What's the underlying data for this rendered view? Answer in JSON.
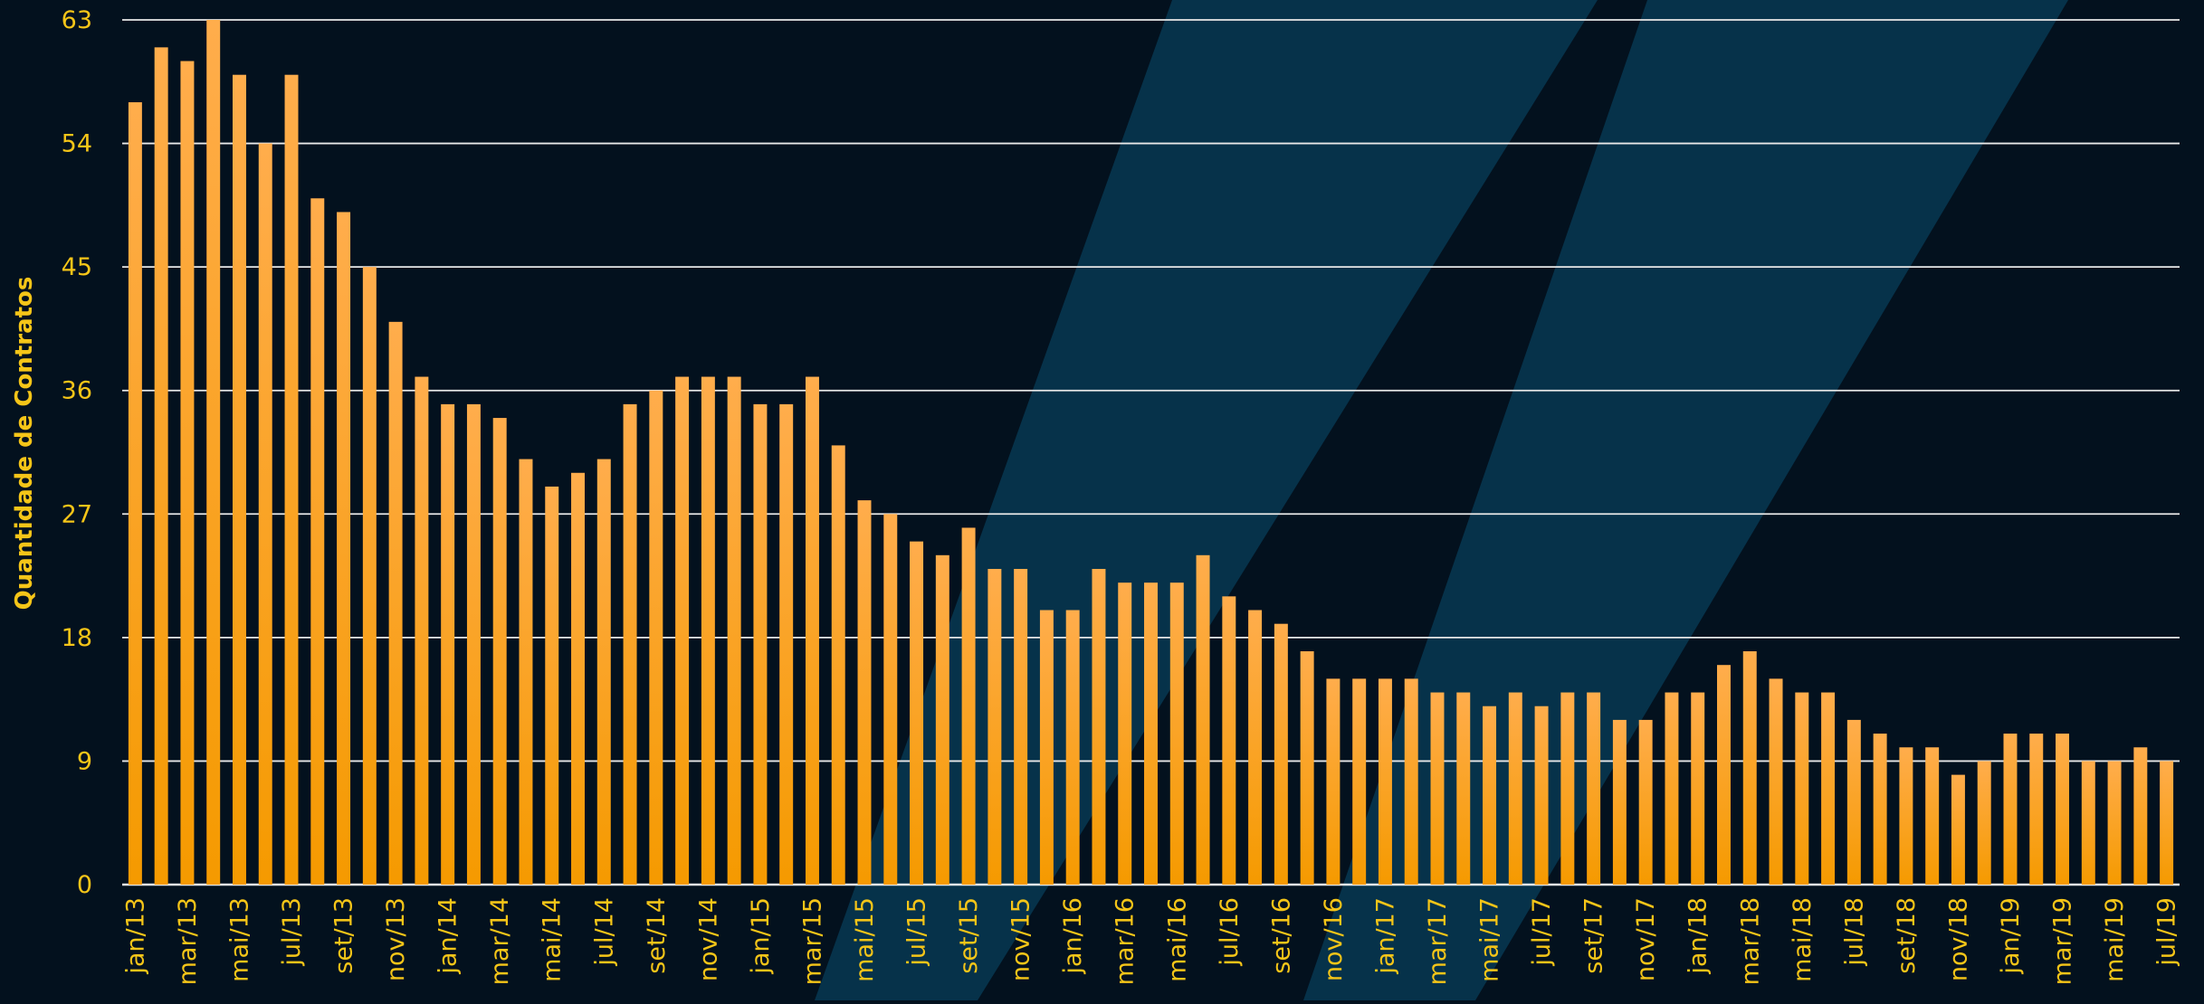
{
  "chart_data": {
    "type": "bar",
    "ylabel": "Quantidade de Contratos",
    "xlabel": "",
    "ylim": [
      0,
      63
    ],
    "yticks": [
      0,
      9,
      18,
      27,
      36,
      45,
      54,
      63
    ],
    "grid": true,
    "categories": [
      "jan/13",
      "fev/13",
      "mar/13",
      "abr/13",
      "mai/13",
      "jun/13",
      "jul/13",
      "ago/13",
      "set/13",
      "out/13",
      "nov/13",
      "dez/13",
      "jan/14",
      "fev/14",
      "mar/14",
      "abr/14",
      "mai/14",
      "jun/14",
      "jul/14",
      "ago/14",
      "set/14",
      "out/14",
      "nov/14",
      "dez/14",
      "jan/15",
      "fev/15",
      "mar/15",
      "abr/15",
      "mai/15",
      "jun/15",
      "jul/15",
      "ago/15",
      "set/15",
      "out/15",
      "nov/15",
      "dez/15",
      "jan/16",
      "fev/16",
      "mar/16",
      "abr/16",
      "mai/16",
      "jun/16",
      "jul/16",
      "ago/16",
      "set/16",
      "out/16",
      "nov/16",
      "dez/16",
      "jan/17",
      "fev/17",
      "mar/17",
      "abr/17",
      "mai/17",
      "jun/17",
      "jul/17",
      "ago/17",
      "set/17",
      "out/17",
      "nov/17",
      "dez/17",
      "jan/18",
      "fev/18",
      "mar/18",
      "abr/18",
      "mai/18",
      "jun/18",
      "jul/18",
      "ago/18",
      "set/18",
      "out/18",
      "nov/18",
      "dez/18",
      "jan/19",
      "fev/19",
      "mar/19",
      "abr/19",
      "mai/19",
      "jun/19",
      "jul/19"
    ],
    "values": [
      57,
      61,
      60,
      63,
      59,
      54,
      59,
      50,
      49,
      45,
      41,
      37,
      35,
      35,
      34,
      31,
      29,
      30,
      31,
      35,
      36,
      37,
      37,
      37,
      35,
      35,
      37,
      32,
      28,
      27,
      25,
      24,
      26,
      23,
      23,
      20,
      20,
      23,
      22,
      22,
      22,
      24,
      21,
      20,
      19,
      17,
      15,
      15,
      15,
      15,
      14,
      14,
      13,
      14,
      13,
      14,
      14,
      12,
      12,
      14,
      14,
      16,
      17,
      15,
      14,
      14,
      12,
      11,
      10,
      10,
      8,
      9,
      11,
      11,
      11,
      9,
      9,
      10,
      9
    ],
    "colors": {
      "background": "#03111e",
      "band": "#06324a",
      "bar_top": "#ffad4c",
      "bar_bottom": "#f59a00",
      "grid": "#e8e8e8",
      "text": "#f5c518"
    }
  }
}
